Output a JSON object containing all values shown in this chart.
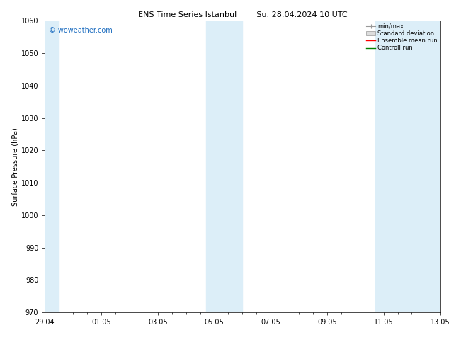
{
  "title_left": "ENS Time Series Istanbul",
  "title_right": "Su. 28.04.2024 10 UTC",
  "ylabel": "Surface Pressure (hPa)",
  "ylim": [
    970,
    1060
  ],
  "yticks": [
    970,
    980,
    990,
    1000,
    1010,
    1020,
    1030,
    1040,
    1050,
    1060
  ],
  "xtick_labels": [
    "29.04",
    "01.05",
    "03.05",
    "05.05",
    "07.05",
    "09.05",
    "11.05",
    "13.05"
  ],
  "xlim": [
    0,
    14
  ],
  "shaded_bands": [
    {
      "x_start": 0.0,
      "x_end": 0.5
    },
    {
      "x_start": 5.7,
      "x_end": 7.0
    },
    {
      "x_start": 11.7,
      "x_end": 14.0
    }
  ],
  "band_color": "#dceef8",
  "background_color": "#ffffff",
  "title_fontsize": 8,
  "axis_fontsize": 7,
  "tick_fontsize": 7,
  "legend_labels": [
    "min/max",
    "Standard deviation",
    "Ensemble mean run",
    "Controll run"
  ],
  "legend_colors": [
    "#aaaaaa",
    "#cccccc",
    "#ff0000",
    "#008000"
  ],
  "watermark_text": "© woweather.com",
  "watermark_color": "#1a6bbf",
  "watermark_fontsize": 7
}
